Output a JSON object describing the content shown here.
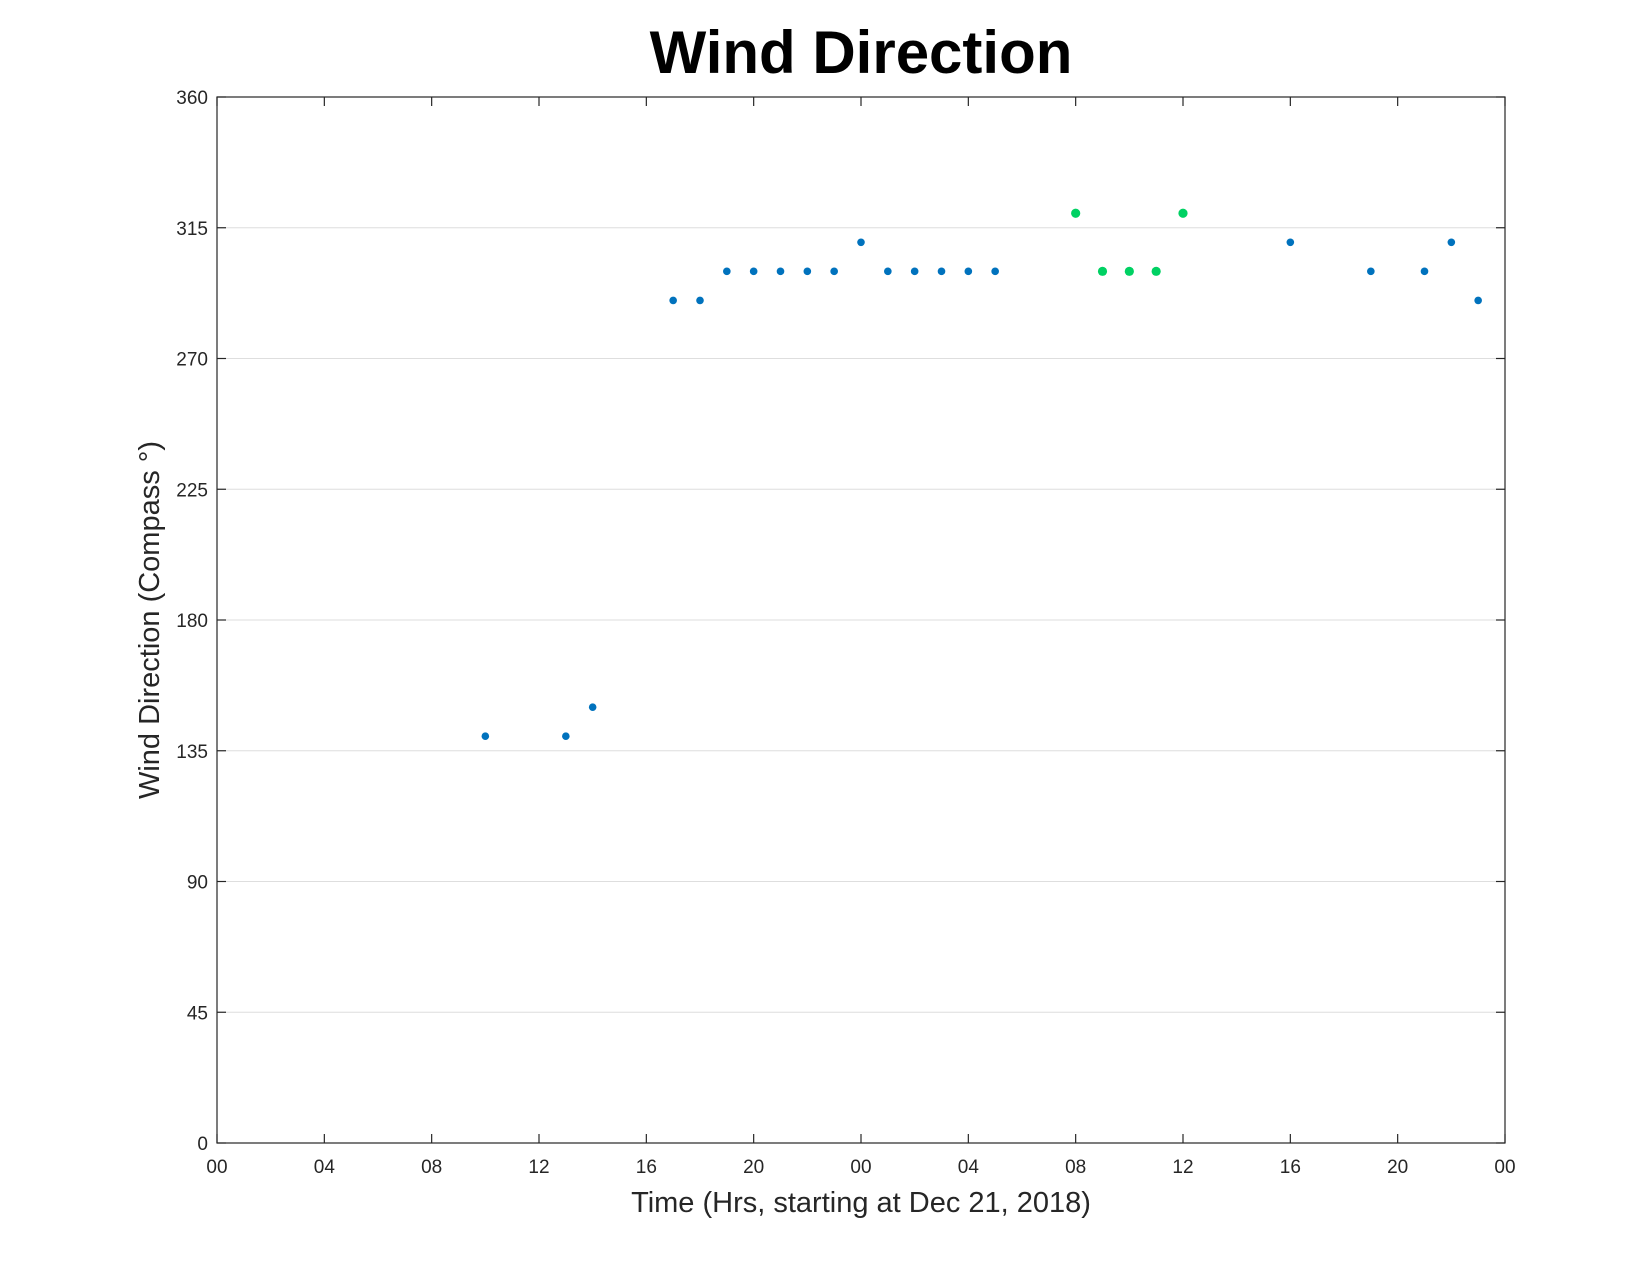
{
  "chart_data": {
    "type": "scatter",
    "title": "Wind Direction",
    "xlabel": "Time (Hrs, starting at Dec 21, 2018)",
    "ylabel": "Wind Direction (Compass °)",
    "ylim": [
      0,
      360
    ],
    "yticks": [
      0,
      45,
      90,
      135,
      180,
      225,
      270,
      315,
      360
    ],
    "xticks": [
      "2018-12-21 00:00",
      "2018-12-21 04:00",
      "2018-12-21 08:00",
      "2018-12-21 12:00",
      "2018-12-21 16:00",
      "2018-12-21 20:00",
      "2018-12-22 00:00",
      "2018-12-22 04:00",
      "2018-12-22 08:00",
      "2018-12-22 12:00",
      "2018-12-22 16:00",
      "2018-12-22 20:00",
      "2018-12-23 00:00"
    ],
    "xtick_labels": [
      "00",
      "04",
      "08",
      "12",
      "16",
      "20",
      "00",
      "04",
      "08",
      "12",
      "16",
      "20",
      "00"
    ],
    "xlim": [
      "2018-12-21 00:00",
      "2018-12-23 00:00"
    ],
    "grid": "horizontal",
    "series": [
      {
        "color": "#0072bd",
        "points": [
          {
            "x": "2018-12-21 10:00",
            "y": 140
          },
          {
            "x": "2018-12-21 13:00",
            "y": 140
          },
          {
            "x": "2018-12-21 14:00",
            "y": 150
          },
          {
            "x": "2018-12-21 17:00",
            "y": 290
          },
          {
            "x": "2018-12-21 18:00",
            "y": 290
          },
          {
            "x": "2018-12-21 19:00",
            "y": 300
          },
          {
            "x": "2018-12-21 20:00",
            "y": 300
          },
          {
            "x": "2018-12-21 21:00",
            "y": 300
          },
          {
            "x": "2018-12-21 22:00",
            "y": 300
          },
          {
            "x": "2018-12-21 23:00",
            "y": 300
          },
          {
            "x": "2018-12-22 00:00",
            "y": 310
          },
          {
            "x": "2018-12-22 01:00",
            "y": 300
          },
          {
            "x": "2018-12-22 02:00",
            "y": 300
          },
          {
            "x": "2018-12-22 03:00",
            "y": 300
          },
          {
            "x": "2018-12-22 04:00",
            "y": 300
          },
          {
            "x": "2018-12-22 05:00",
            "y": 300
          },
          {
            "x": "2018-12-22 16:00",
            "y": 310
          },
          {
            "x": "2018-12-22 19:00",
            "y": 300
          },
          {
            "x": "2018-12-22 21:00",
            "y": 300
          },
          {
            "x": "2018-12-22 22:00",
            "y": 310
          },
          {
            "x": "2018-12-22 23:00",
            "y": 290
          }
        ]
      },
      {
        "color": "#00d163",
        "points": [
          {
            "x": "2018-12-22 08:00",
            "y": 320
          },
          {
            "x": "2018-12-22 09:00",
            "y": 300
          },
          {
            "x": "2018-12-22 10:00",
            "y": 300
          },
          {
            "x": "2018-12-22 11:00",
            "y": 300
          },
          {
            "x": "2018-12-22 12:00",
            "y": 320
          }
        ]
      }
    ]
  }
}
